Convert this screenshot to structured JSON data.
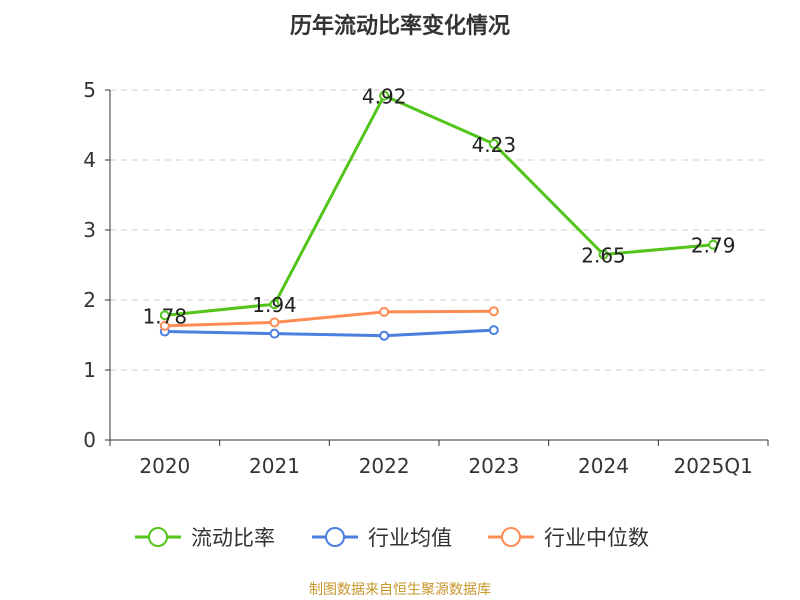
{
  "chart_data": {
    "type": "line",
    "title": "历年流动比率变化情况",
    "categories": [
      "2020",
      "2021",
      "2022",
      "2023",
      "2024",
      "2025Q1"
    ],
    "ylim": [
      0,
      5
    ],
    "yticks": [
      "0",
      "1",
      "2",
      "3",
      "4",
      "5"
    ],
    "grid": true,
    "legend_placement": "bottom",
    "series": [
      {
        "name": "流动比率",
        "color": "#52c41a",
        "values": [
          1.78,
          1.94,
          4.92,
          4.23,
          2.65,
          2.79
        ],
        "labels": [
          "1.78",
          "1.94",
          "4.92",
          "4.23",
          "2.65",
          "2.79"
        ]
      },
      {
        "name": "行业均值",
        "color": "#4a7fe0",
        "values": [
          1.55,
          1.52,
          1.49,
          1.57,
          null,
          null
        ]
      },
      {
        "name": "行业中位数",
        "color": "#ff8c55",
        "values": [
          1.63,
          1.68,
          1.83,
          1.84,
          null,
          null
        ]
      }
    ]
  },
  "source": "制图数据来自恒生聚源数据库"
}
